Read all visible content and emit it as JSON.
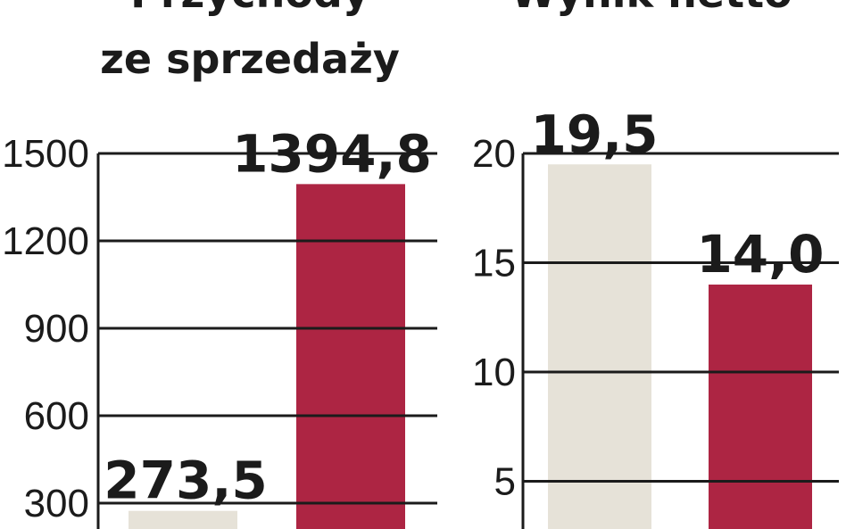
{
  "chart_data": [
    {
      "type": "bar",
      "title": [
        "Przychody",
        "ze sprzedaży"
      ],
      "yticks": [
        300,
        600,
        900,
        1200,
        1500
      ],
      "ytick_labels": [
        "300",
        "600",
        "900",
        "1200",
        "1500"
      ],
      "ylim": [
        0,
        1500
      ],
      "grid": true,
      "values": [
        273.5,
        1394.8
      ],
      "value_labels": [
        "273,5",
        "1394,8"
      ],
      "colors": [
        "#e6e2d8",
        "#ad2543"
      ]
    },
    {
      "type": "bar",
      "title": [
        "Wynik netto"
      ],
      "yticks": [
        5,
        10,
        15,
        20
      ],
      "ytick_labels": [
        "5",
        "10",
        "15",
        "20"
      ],
      "ylim": [
        0,
        20
      ],
      "grid": true,
      "values": [
        19.5,
        14.0
      ],
      "value_labels": [
        "19,5",
        "14,0"
      ],
      "colors": [
        "#e6e2d8",
        "#ad2543"
      ]
    }
  ]
}
